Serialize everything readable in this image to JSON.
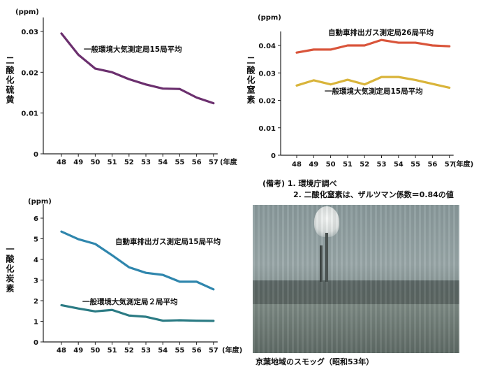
{
  "chart_data": [
    {
      "type": "line",
      "unit_label": "(ppm)",
      "ylabel": "二酸化硫黄",
      "xlabel": "(年度)",
      "categories": [
        "48",
        "49",
        "50",
        "51",
        "52",
        "53",
        "54",
        "55",
        "56",
        "57"
      ],
      "ylim": [
        0,
        0.03
      ],
      "yticks": [
        {
          "v": 0,
          "label": "0"
        },
        {
          "v": 0.01,
          "label": "0.01"
        },
        {
          "v": 0.02,
          "label": "0.02"
        },
        {
          "v": 0.03,
          "label": "0.03"
        }
      ],
      "series": [
        {
          "name": "一般環境大気測定局15局平均",
          "color": "#6b2f6e",
          "values": [
            0.0295,
            0.0243,
            0.0209,
            0.02,
            0.0183,
            0.017,
            0.016,
            0.0159,
            0.0138,
            0.0124
          ]
        }
      ]
    },
    {
      "type": "line",
      "unit_label": "(ppm)",
      "ylabel": "二酸化窒素",
      "xlabel": "(年度)",
      "categories": [
        "48",
        "49",
        "50",
        "51",
        "52",
        "53",
        "54",
        "55",
        "56",
        "57"
      ],
      "ylim": [
        0,
        0.04
      ],
      "yticks": [
        {
          "v": 0,
          "label": "0"
        },
        {
          "v": 0.01,
          "label": "0.01"
        },
        {
          "v": 0.02,
          "label": "0.02"
        },
        {
          "v": 0.03,
          "label": "0.03"
        },
        {
          "v": 0.04,
          "label": "0.04"
        }
      ],
      "series": [
        {
          "name": "自動車排出ガス測定局26局平均",
          "color": "#d9543a",
          "values": [
            0.0374,
            0.0385,
            0.0385,
            0.04,
            0.04,
            0.042,
            0.041,
            0.041,
            0.04,
            0.0397
          ]
        },
        {
          "name": "一般環境大気測定局15局平均",
          "color": "#d9b43a",
          "values": [
            0.0254,
            0.0273,
            0.0258,
            0.0275,
            0.0258,
            0.0285,
            0.0285,
            0.0274,
            0.026,
            0.0246
          ]
        }
      ]
    },
    {
      "type": "line",
      "unit_label": "(ppm)",
      "ylabel": "一酸化炭素",
      "xlabel": "(年度)",
      "categories": [
        "48",
        "49",
        "50",
        "51",
        "52",
        "53",
        "54",
        "55",
        "56",
        "57"
      ],
      "ylim": [
        0,
        6
      ],
      "yticks": [
        {
          "v": 0,
          "label": "0"
        },
        {
          "v": 1,
          "label": "1"
        },
        {
          "v": 2,
          "label": "2"
        },
        {
          "v": 3,
          "label": "3"
        },
        {
          "v": 4,
          "label": "4"
        },
        {
          "v": 5,
          "label": "5"
        },
        {
          "v": 6,
          "label": "6"
        }
      ],
      "series": [
        {
          "name": "自動車排出ガス測定局15局平均",
          "color": "#2f86ad",
          "values": [
            5.35,
            4.98,
            4.75,
            4.2,
            3.62,
            3.35,
            3.25,
            2.92,
            2.92,
            2.55
          ]
        },
        {
          "name": "一般環境大気測定局２局平均",
          "color": "#2b7b84",
          "values": [
            1.78,
            1.62,
            1.48,
            1.55,
            1.28,
            1.22,
            1.03,
            1.05,
            1.03,
            1.02
          ]
        }
      ]
    }
  ],
  "notes": {
    "line1": "(備考) 1.  環境庁調べ",
    "line2": "2.  二酸化窒素は、ザルツマン係数＝0.84の値"
  },
  "photo_caption": "京葉地域のスモッグ（昭和53年）"
}
